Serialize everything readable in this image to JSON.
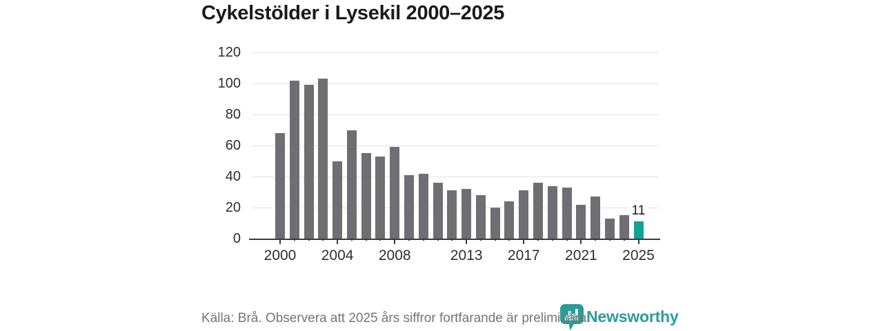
{
  "header": {
    "title": "Cykelstölder i Lysekil 2000–2025"
  },
  "chart_data": {
    "type": "bar",
    "title": "Cykelstölder i Lysekil 2000–2025",
    "categories": [
      "2000",
      "2001",
      "2002",
      "2003",
      "2004",
      "2005",
      "2006",
      "2007",
      "2008",
      "2009",
      "2010",
      "2011",
      "2012",
      "2013",
      "2014",
      "2015",
      "2016",
      "2017",
      "2018",
      "2019",
      "2020",
      "2021",
      "2022",
      "2023",
      "2024",
      "2025"
    ],
    "values": [
      68,
      102,
      99,
      103,
      50,
      70,
      55,
      53,
      59,
      41,
      42,
      36,
      31,
      32,
      28,
      20,
      24,
      31,
      36,
      34,
      33,
      22,
      27,
      13,
      15,
      11
    ],
    "xlabel": "",
    "ylabel": "",
    "ylim": [
      0,
      120
    ],
    "yticks": [
      0,
      20,
      40,
      60,
      80,
      100,
      120
    ],
    "xtick_labels": [
      "2000",
      "2004",
      "2008",
      "2013",
      "2017",
      "2021",
      "2025"
    ],
    "xtick_indices": [
      0,
      4,
      8,
      13,
      17,
      21,
      25
    ],
    "grid": true,
    "legend": false,
    "bar_color": "#6e6e73",
    "highlight": {
      "index": 25,
      "color": "#0fa39a",
      "label": "11"
    }
  },
  "footer": {
    "source_note": "Källa: Brå. Observera att 2025 års siffror fortfarande är preliminära.",
    "brand_name": "Newsworthy",
    "brand_color": "#2b9c98"
  }
}
